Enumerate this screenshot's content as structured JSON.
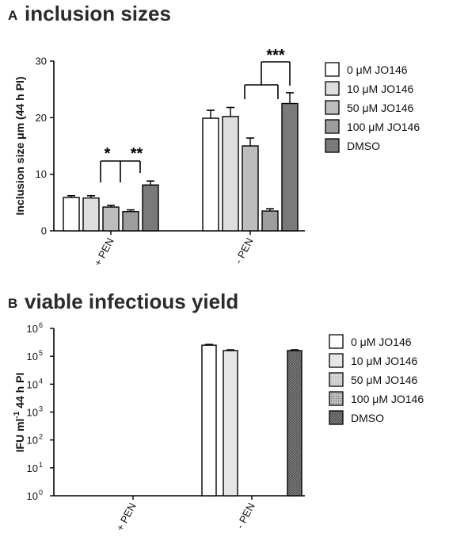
{
  "chart_data": [
    {
      "panel": "A",
      "type": "bar",
      "title": "inclusion sizes",
      "ylabel": "Inclusion size μm (44 h PI)",
      "xlabel": "",
      "ylim": [
        0,
        30
      ],
      "yticks": [
        "0",
        "10",
        "20",
        "30"
      ],
      "ytick_values": [
        0,
        10,
        20,
        30
      ],
      "categories": [
        "+ PEN",
        "- PEN"
      ],
      "legend_position": "right",
      "grid": false,
      "series": [
        {
          "name": "0 μM JO146",
          "color": "#ffffff",
          "values": [
            5.9,
            19.9
          ],
          "errors": [
            0.3,
            1.4
          ]
        },
        {
          "name": "10 μM JO146",
          "color": "#dedede",
          "values": [
            5.8,
            20.2
          ],
          "errors": [
            0.4,
            1.6
          ]
        },
        {
          "name": "50 μM JO146",
          "color": "#bdbdbd",
          "values": [
            4.2,
            15.0
          ],
          "errors": [
            0.3,
            1.4
          ]
        },
        {
          "name": "100 μM JO146",
          "color": "#9d9d9d",
          "values": [
            3.4,
            3.5
          ],
          "errors": [
            0.3,
            0.4
          ]
        },
        {
          "name": "DMSO",
          "color": "#7a7a7a",
          "values": [
            8.1,
            22.5
          ],
          "errors": [
            0.7,
            1.9
          ]
        }
      ],
      "significance": [
        {
          "category": "+ PEN",
          "from_series": 0,
          "to_series": 2,
          "label": "*"
        },
        {
          "category": "+ PEN",
          "from_series": 2,
          "to_series": 4,
          "label": "**"
        },
        {
          "category": "- PEN",
          "from_series": 3,
          "to_series": 4,
          "label": "***"
        }
      ]
    },
    {
      "panel": "B",
      "type": "bar",
      "title": "viable infectious yield",
      "ylabel": "IFU ml-1 44 h PI",
      "xlabel": "",
      "yscale": "log",
      "ylim": [
        1,
        1000000
      ],
      "yticks_base": "10",
      "yticks_exp": [
        "0",
        "1",
        "2",
        "3",
        "4",
        "5",
        "6"
      ],
      "ytick_values": [
        1,
        10,
        100,
        1000,
        10000,
        100000,
        1000000
      ],
      "categories": [
        "+ PEN",
        "- PEN"
      ],
      "legend_position": "right",
      "grid": false,
      "series": [
        {
          "name": "0 μM JO146",
          "color": "#ffffff",
          "pattern": "none",
          "values": [
            null,
            250000
          ],
          "errors": [
            null,
            15000
          ]
        },
        {
          "name": "10 μM JO146",
          "color": "#e6e6e6",
          "pattern": "none",
          "values": [
            null,
            160000
          ],
          "errors": [
            null,
            10000
          ]
        },
        {
          "name": "50 μM JO146",
          "color": "#c8c8c8",
          "pattern": "dots-light",
          "values": [
            null,
            null
          ],
          "errors": [
            null,
            null
          ]
        },
        {
          "name": "100 μM JO146",
          "color": "#b0b0b0",
          "pattern": "dots",
          "values": [
            null,
            null
          ],
          "errors": [
            null,
            null
          ]
        },
        {
          "name": "DMSO",
          "color": "#8a8a8a",
          "pattern": "cross",
          "values": [
            null,
            160000
          ],
          "errors": [
            null,
            10000
          ]
        }
      ]
    }
  ]
}
